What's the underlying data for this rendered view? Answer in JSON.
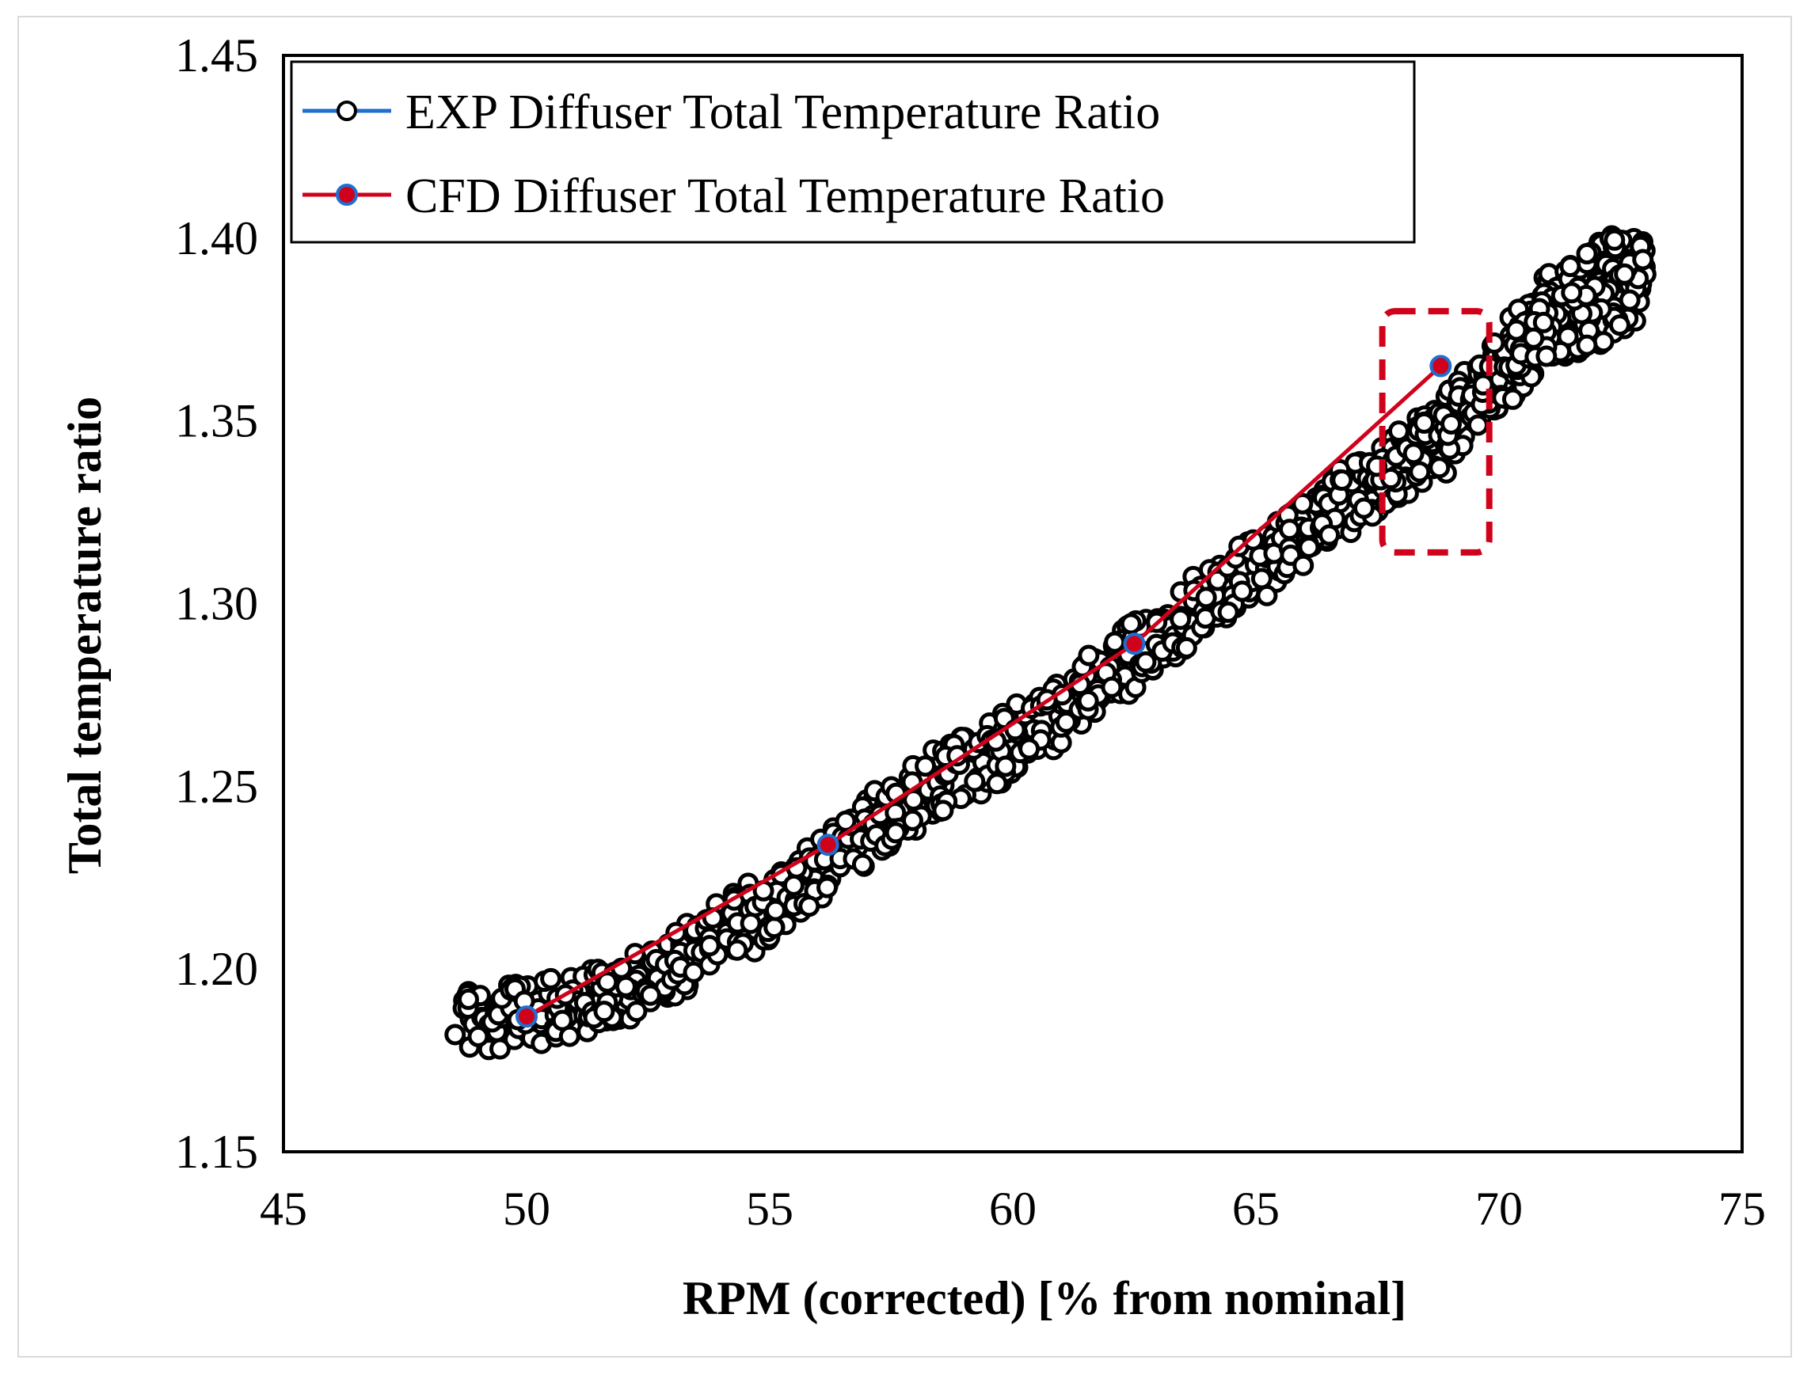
{
  "chart_data": {
    "type": "scatter",
    "title": "",
    "xlabel": "RPM (corrected) [% from nominal]",
    "ylabel": "Total temperature ratio",
    "xlim": [
      45,
      75
    ],
    "ylim": [
      1.15,
      1.45
    ],
    "xticks": [
      "45",
      "50",
      "55",
      "60",
      "65",
      "70",
      "75"
    ],
    "yticks": [
      "1.15",
      "1.20",
      "1.25",
      "1.30",
      "1.35",
      "1.40",
      "1.45"
    ],
    "grid": false,
    "legend_position": "top-left",
    "series": [
      {
        "name": "EXP Diffuser Total Temperature Ratio",
        "marker": "open-circle",
        "marker_color": "#000000",
        "legend_line_color": "#1f6fd1",
        "band_path": [
          [
            48.6,
            1.186
          ],
          [
            49.5,
            1.187
          ],
          [
            50.5,
            1.188
          ],
          [
            51.5,
            1.192
          ],
          [
            52.5,
            1.197
          ],
          [
            53.5,
            1.205
          ],
          [
            54.5,
            1.213
          ],
          [
            55.5,
            1.222
          ],
          [
            56.5,
            1.232
          ],
          [
            57.5,
            1.243
          ],
          [
            58.5,
            1.252
          ],
          [
            59.5,
            1.258
          ],
          [
            60.5,
            1.266
          ],
          [
            61.5,
            1.276
          ],
          [
            62.5,
            1.286
          ],
          [
            63.5,
            1.296
          ],
          [
            64.5,
            1.305
          ],
          [
            65.5,
            1.315
          ],
          [
            66.5,
            1.325
          ],
          [
            67.5,
            1.334
          ],
          [
            68.2,
            1.34
          ],
          [
            68.9,
            1.346
          ],
          [
            69.3,
            1.355
          ],
          [
            69.9,
            1.362
          ],
          [
            70.4,
            1.368
          ],
          [
            70.8,
            1.378
          ],
          [
            71.5,
            1.385
          ],
          [
            72.3,
            1.392
          ],
          [
            72.9,
            1.391
          ],
          [
            72.6,
            1.382
          ],
          [
            71.8,
            1.378
          ],
          [
            71.0,
            1.375
          ],
          [
            70.3,
            1.372
          ]
        ],
        "band_half_width": 0.009
      },
      {
        "name": "CFD Diffuser Total Temperature Ratio",
        "marker": "filled-circle",
        "marker_fill": "#d0021b",
        "marker_edge": "#1f6fd1",
        "line_color": "#d0021b",
        "x": [
          50.0,
          56.2,
          62.5,
          68.8
        ],
        "y": [
          1.187,
          1.234,
          1.289,
          1.365
        ]
      }
    ],
    "annotations": [
      {
        "type": "dashed-rectangle",
        "color": "#d0021b",
        "x_range": [
          67.6,
          69.8
        ],
        "y_range": [
          1.314,
          1.38
        ]
      }
    ]
  }
}
